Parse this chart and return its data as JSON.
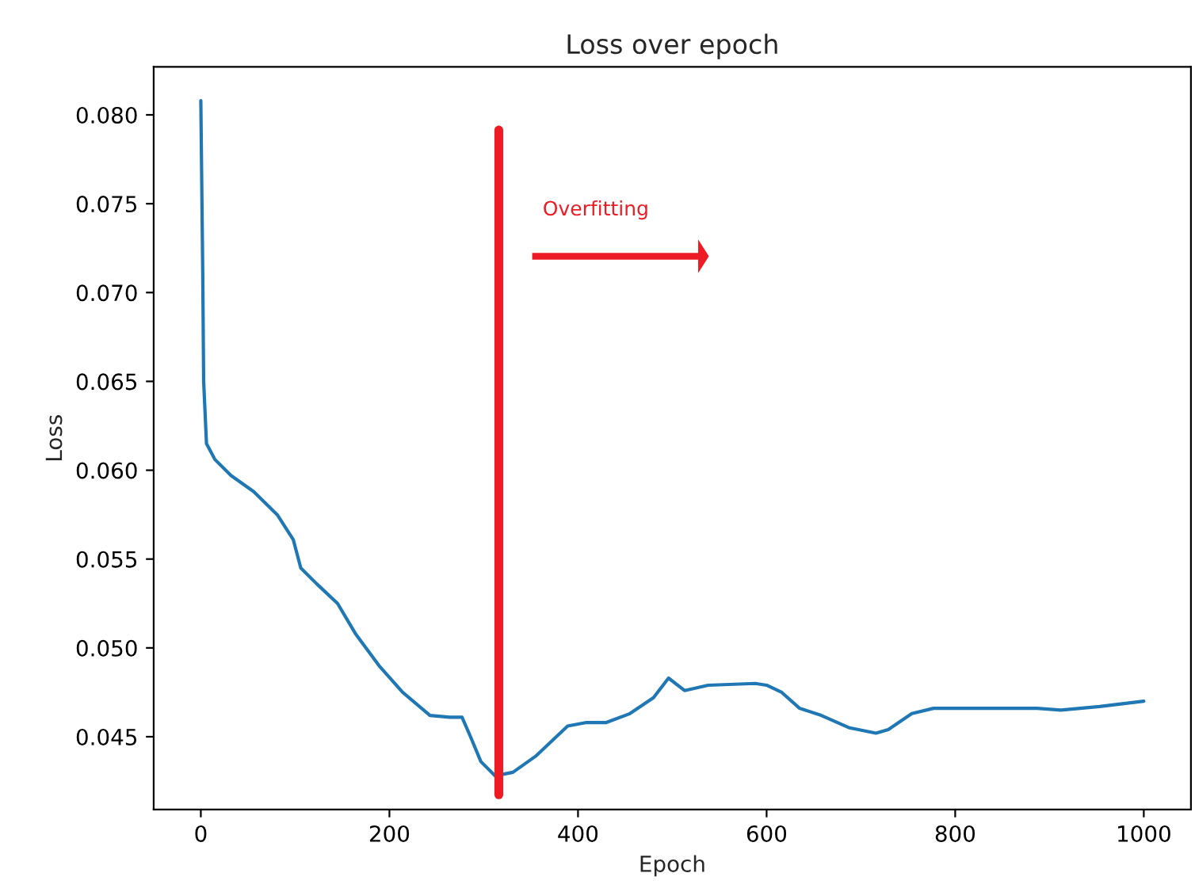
{
  "chart_data": {
    "type": "line",
    "title": "Loss over epoch",
    "xlabel": "Epoch",
    "ylabel": "Loss",
    "x": [
      0,
      2,
      3,
      6,
      15,
      32,
      56,
      81,
      98,
      106,
      123,
      145,
      164,
      189,
      214,
      243,
      264,
      277,
      286,
      297,
      312,
      331,
      355,
      389,
      409,
      430,
      455,
      480,
      496,
      513,
      538,
      588,
      600,
      616,
      635,
      658,
      688,
      716,
      729,
      754,
      777,
      821,
      887,
      912,
      953,
      1000
    ],
    "series": [
      {
        "color": "#1f77b4",
        "values": [
          0.0808,
          0.0713,
          0.065,
          0.0615,
          0.0606,
          0.0597,
          0.0588,
          0.0575,
          0.0561,
          0.0545,
          0.0536,
          0.0525,
          0.0508,
          0.049,
          0.0475,
          0.0462,
          0.0461,
          0.0461,
          0.045,
          0.0436,
          0.0428,
          0.043,
          0.0439,
          0.0456,
          0.0458,
          0.0458,
          0.0463,
          0.0472,
          0.0483,
          0.0476,
          0.0479,
          0.048,
          0.0479,
          0.0475,
          0.0466,
          0.0462,
          0.0455,
          0.0452,
          0.0454,
          0.0463,
          0.0466,
          0.0466,
          0.0466,
          0.0465,
          0.0467,
          0.047
        ]
      }
    ],
    "xlim": [
      -50,
      1050
    ],
    "xticks": [
      0,
      200,
      400,
      600,
      800,
      1000
    ],
    "ylim": [
      0.0409,
      0.0827
    ],
    "yticks": [
      {
        "value": 0.045,
        "label": "0.045"
      },
      {
        "value": 0.05,
        "label": "0.050"
      },
      {
        "value": 0.055,
        "label": "0.055"
      },
      {
        "value": 0.06,
        "label": "0.060"
      },
      {
        "value": 0.065,
        "label": "0.065"
      },
      {
        "value": 0.07,
        "label": "0.070"
      },
      {
        "value": 0.075,
        "label": "0.075"
      },
      {
        "value": 0.08,
        "label": "0.080"
      }
    ],
    "ref_lines": [
      {
        "axis": "x",
        "value": 316,
        "color": "#ed1c24"
      }
    ],
    "annotations": [
      "Overfitting"
    ],
    "grid": false,
    "legend": false
  }
}
